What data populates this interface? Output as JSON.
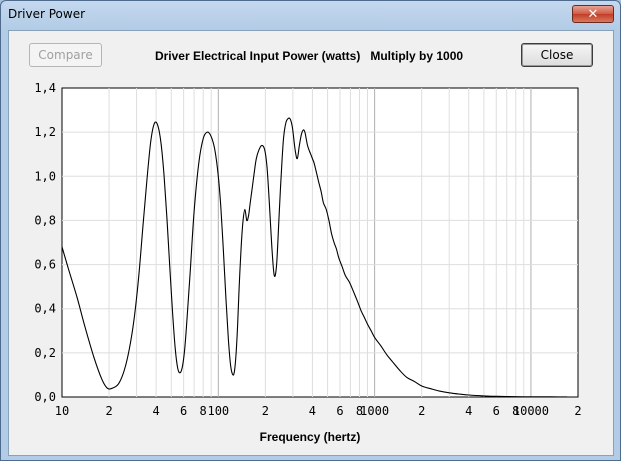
{
  "window": {
    "title": "Driver Power",
    "close_glyph": "✕"
  },
  "buttons": {
    "compare": "Compare",
    "close": "Close"
  },
  "heading": "Driver Electrical Input Power (watts)   Multiply by 1000",
  "chart_data": {
    "type": "line",
    "title": "Driver Electrical Input Power (watts)   Multiply by 1000",
    "xlabel": "Frequency (hertz)",
    "ylabel": "",
    "x_scale": "log",
    "xlim": [
      10,
      20000
    ],
    "ylim": [
      0,
      1.4
    ],
    "y_ticks": [
      "0,0",
      "0,2",
      "0,4",
      "0,6",
      "0,8",
      "1,0",
      "1,2",
      "1,4"
    ],
    "x_ticks": [
      {
        "value": 10,
        "label": "10"
      },
      {
        "value": 20,
        "label": "2"
      },
      {
        "value": 40,
        "label": "4"
      },
      {
        "value": 60,
        "label": "6"
      },
      {
        "value": 80,
        "label": "8"
      },
      {
        "value": 100,
        "label": "100"
      },
      {
        "value": 200,
        "label": "2"
      },
      {
        "value": 400,
        "label": "4"
      },
      {
        "value": 600,
        "label": "6"
      },
      {
        "value": 800,
        "label": "8"
      },
      {
        "value": 1000,
        "label": "1000"
      },
      {
        "value": 2000,
        "label": "2"
      },
      {
        "value": 4000,
        "label": "4"
      },
      {
        "value": 6000,
        "label": "6"
      },
      {
        "value": 8000,
        "label": "8"
      },
      {
        "value": 10000,
        "label": "10000"
      },
      {
        "value": 20000,
        "label": "2"
      }
    ],
    "grid": true,
    "series": [
      {
        "x": [
          10,
          11,
          12.5,
          14,
          16,
          18,
          19.5,
          21,
          23,
          25,
          27,
          29,
          31,
          33,
          35,
          37,
          39,
          41,
          43,
          45,
          47,
          49,
          51,
          53,
          55,
          57,
          59,
          61,
          63,
          66,
          70,
          75,
          80,
          85,
          90,
          95,
          100,
          104,
          108,
          112,
          116,
          120,
          124,
          127,
          130,
          133,
          136,
          140,
          144,
          148,
          152,
          156,
          160,
          165,
          170,
          175,
          182,
          190,
          198,
          205,
          212,
          220,
          228,
          236,
          244,
          250,
          256,
          262,
          270,
          278,
          288,
          298,
          310,
          320,
          330,
          340,
          350,
          358,
          365,
          372,
          380,
          390,
          400,
          410,
          420,
          430,
          440,
          455,
          470,
          490,
          510,
          530,
          550,
          570,
          590,
          620,
          650,
          690,
          730,
          780,
          820,
          860,
          900,
          950,
          1000,
          1100,
          1200,
          1300,
          1450,
          1600,
          1800,
          2000,
          2300,
          2600,
          3000,
          3500,
          4000,
          5000,
          6000,
          7000,
          8000,
          9000,
          10000,
          12000,
          15000,
          17000
        ],
        "y": [
          0.68,
          0.58,
          0.45,
          0.32,
          0.18,
          0.08,
          0.04,
          0.04,
          0.06,
          0.12,
          0.22,
          0.36,
          0.55,
          0.78,
          0.99,
          1.16,
          1.24,
          1.23,
          1.15,
          1.0,
          0.8,
          0.58,
          0.38,
          0.22,
          0.13,
          0.11,
          0.14,
          0.22,
          0.35,
          0.56,
          0.84,
          1.06,
          1.17,
          1.2,
          1.18,
          1.12,
          1.0,
          0.85,
          0.65,
          0.44,
          0.26,
          0.14,
          0.1,
          0.12,
          0.2,
          0.33,
          0.5,
          0.68,
          0.8,
          0.85,
          0.8,
          0.82,
          0.88,
          0.95,
          1.02,
          1.08,
          1.12,
          1.14,
          1.12,
          1.04,
          0.88,
          0.68,
          0.55,
          0.6,
          0.8,
          0.95,
          1.08,
          1.18,
          1.24,
          1.26,
          1.26,
          1.22,
          1.12,
          1.08,
          1.14,
          1.19,
          1.21,
          1.2,
          1.17,
          1.14,
          1.12,
          1.1,
          1.08,
          1.06,
          1.03,
          1.0,
          0.97,
          0.93,
          0.88,
          0.85,
          0.8,
          0.74,
          0.7,
          0.67,
          0.63,
          0.59,
          0.55,
          0.52,
          0.48,
          0.43,
          0.39,
          0.36,
          0.33,
          0.3,
          0.27,
          0.23,
          0.19,
          0.16,
          0.12,
          0.09,
          0.07,
          0.05,
          0.037,
          0.027,
          0.019,
          0.013,
          0.009,
          0.005,
          0.003,
          0.002,
          0.0015,
          0.0012,
          0.001,
          0.0008,
          0.0006,
          0.0005
        ]
      }
    ]
  }
}
